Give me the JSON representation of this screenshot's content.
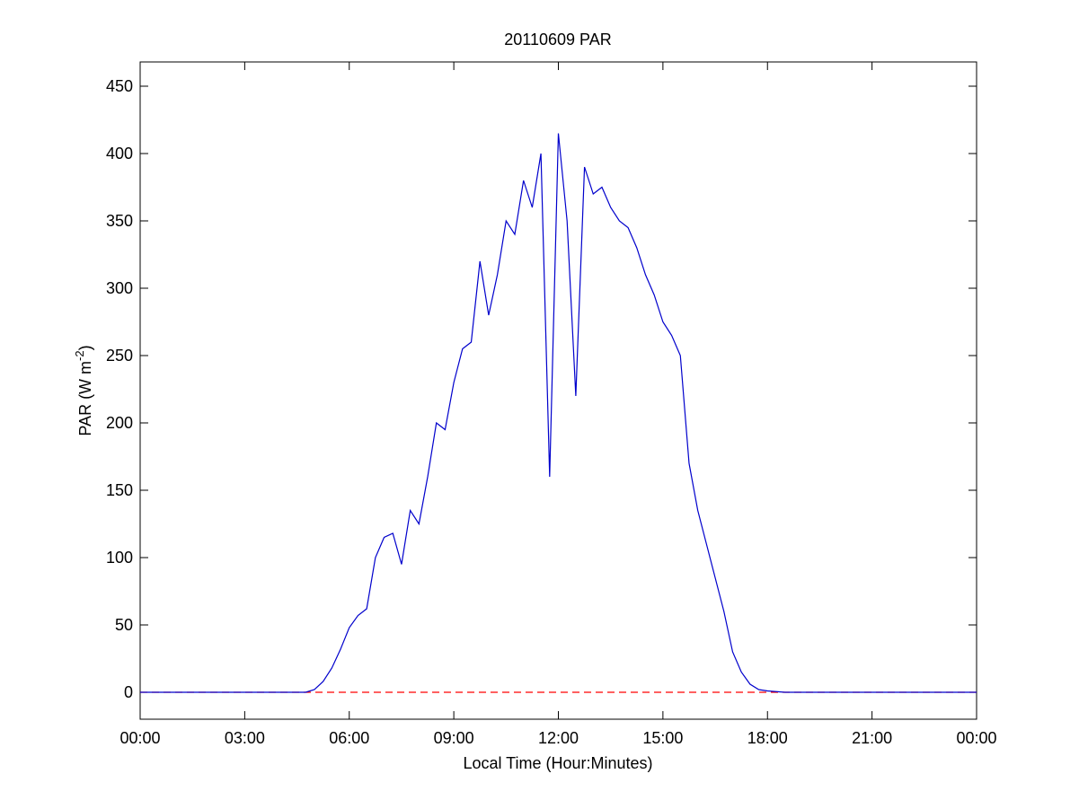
{
  "chart_data": {
    "type": "line",
    "title": "20110609 PAR",
    "xlabel": "Local Time (Hour:Minutes)",
    "ylabel": [
      "PAR (W m",
      "-2",
      ")"
    ],
    "x": [
      0,
      1,
      2,
      3,
      4,
      4.75,
      5,
      5.25,
      5.5,
      5.75,
      6,
      6.25,
      6.5,
      6.75,
      7,
      7.25,
      7.5,
      7.75,
      8,
      8.25,
      8.5,
      8.75,
      9,
      9.25,
      9.5,
      9.75,
      10,
      10.25,
      10.5,
      10.75,
      11,
      11.25,
      11.5,
      11.75,
      12,
      12.25,
      12.5,
      12.75,
      13,
      13.25,
      13.5,
      13.75,
      14,
      14.25,
      14.5,
      14.75,
      15,
      15.25,
      15.5,
      15.75,
      16,
      16.25,
      16.5,
      16.75,
      17,
      17.25,
      17.5,
      17.75,
      18,
      18.5,
      19,
      20,
      21,
      22,
      23,
      24
    ],
    "series": [
      {
        "color": "#0000cc",
        "values": [
          0,
          0,
          0,
          0,
          0,
          0,
          2,
          8,
          18,
          32,
          48,
          57,
          62,
          100,
          115,
          118,
          95,
          135,
          125,
          160,
          200,
          195,
          230,
          255,
          260,
          320,
          280,
          310,
          350,
          340,
          380,
          360,
          400,
          160,
          415,
          350,
          220,
          390,
          370,
          375,
          360,
          350,
          345,
          330,
          310,
          295,
          275,
          265,
          250,
          170,
          135,
          110,
          85,
          60,
          30,
          15,
          6,
          2,
          1,
          0,
          0,
          0,
          0,
          0,
          0,
          0
        ]
      }
    ],
    "hline": {
      "value": 0,
      "color": "#ff0000",
      "style": "dashed"
    },
    "xlim": [
      0,
      24
    ],
    "xticks": [
      {
        "value": 0,
        "label": "00:00"
      },
      {
        "value": 3,
        "label": "03:00"
      },
      {
        "value": 6,
        "label": "06:00"
      },
      {
        "value": 9,
        "label": "09:00"
      },
      {
        "value": 12,
        "label": "12:00"
      },
      {
        "value": 15,
        "label": "15:00"
      },
      {
        "value": 18,
        "label": "18:00"
      },
      {
        "value": 21,
        "label": "21:00"
      },
      {
        "value": 24,
        "label": "00:00"
      }
    ],
    "ylim": [
      -20,
      468
    ],
    "yticks": [
      0,
      50,
      100,
      150,
      200,
      250,
      300,
      350,
      400,
      450
    ],
    "grid": false
  }
}
